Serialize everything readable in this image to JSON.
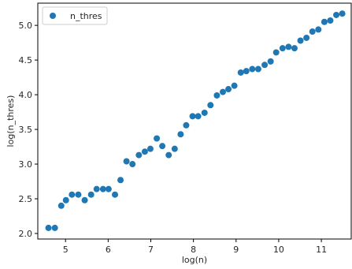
{
  "chart_data": {
    "type": "scatter",
    "xlabel": "log(n)",
    "ylabel": "log(n_thres)",
    "xlim": [
      4.35,
      11.7
    ],
    "ylim": [
      1.92,
      5.32
    ],
    "xticks": [
      5,
      6,
      7,
      8,
      9,
      10,
      11
    ],
    "yticks": [
      2.0,
      2.5,
      3.0,
      3.5,
      4.0,
      4.5,
      5.0
    ],
    "xtick_labels": [
      "5",
      "6",
      "7",
      "8",
      "9",
      "10",
      "11"
    ],
    "ytick_labels": [
      "2.0",
      "2.5",
      "3.0",
      "3.5",
      "4.0",
      "4.5",
      "5.0"
    ],
    "grid": false,
    "legend": {
      "placement": "top-left",
      "entries": [
        "n_thres"
      ]
    },
    "colors": {
      "series": "#1f77b4",
      "axes": "#000000",
      "text": "#262626"
    },
    "series": [
      {
        "name": "n_thres",
        "x": [
          4.6,
          4.75,
          4.9,
          5.01,
          5.15,
          5.3,
          5.45,
          5.6,
          5.73,
          5.88,
          6.01,
          6.16,
          6.29,
          6.43,
          6.57,
          6.72,
          6.86,
          6.99,
          7.14,
          7.27,
          7.42,
          7.56,
          7.7,
          7.83,
          7.98,
          8.11,
          8.26,
          8.4,
          8.55,
          8.69,
          8.82,
          8.96,
          9.11,
          9.24,
          9.38,
          9.52,
          9.67,
          9.81,
          9.94,
          10.09,
          10.23,
          10.37,
          10.51,
          10.65,
          10.79,
          10.93,
          11.07,
          11.21,
          11.35,
          11.49
        ],
        "y": [
          2.08,
          2.08,
          2.4,
          2.48,
          2.56,
          2.56,
          2.48,
          2.56,
          2.64,
          2.64,
          2.64,
          2.56,
          2.77,
          3.04,
          3.0,
          3.13,
          3.18,
          3.22,
          3.37,
          3.26,
          3.13,
          3.22,
          3.43,
          3.56,
          3.69,
          3.69,
          3.74,
          3.85,
          3.99,
          4.04,
          4.08,
          4.13,
          4.32,
          4.34,
          4.37,
          4.37,
          4.43,
          4.48,
          4.61,
          4.67,
          4.69,
          4.67,
          4.78,
          4.82,
          4.91,
          4.94,
          5.05,
          5.07,
          5.15,
          5.17
        ]
      }
    ]
  }
}
